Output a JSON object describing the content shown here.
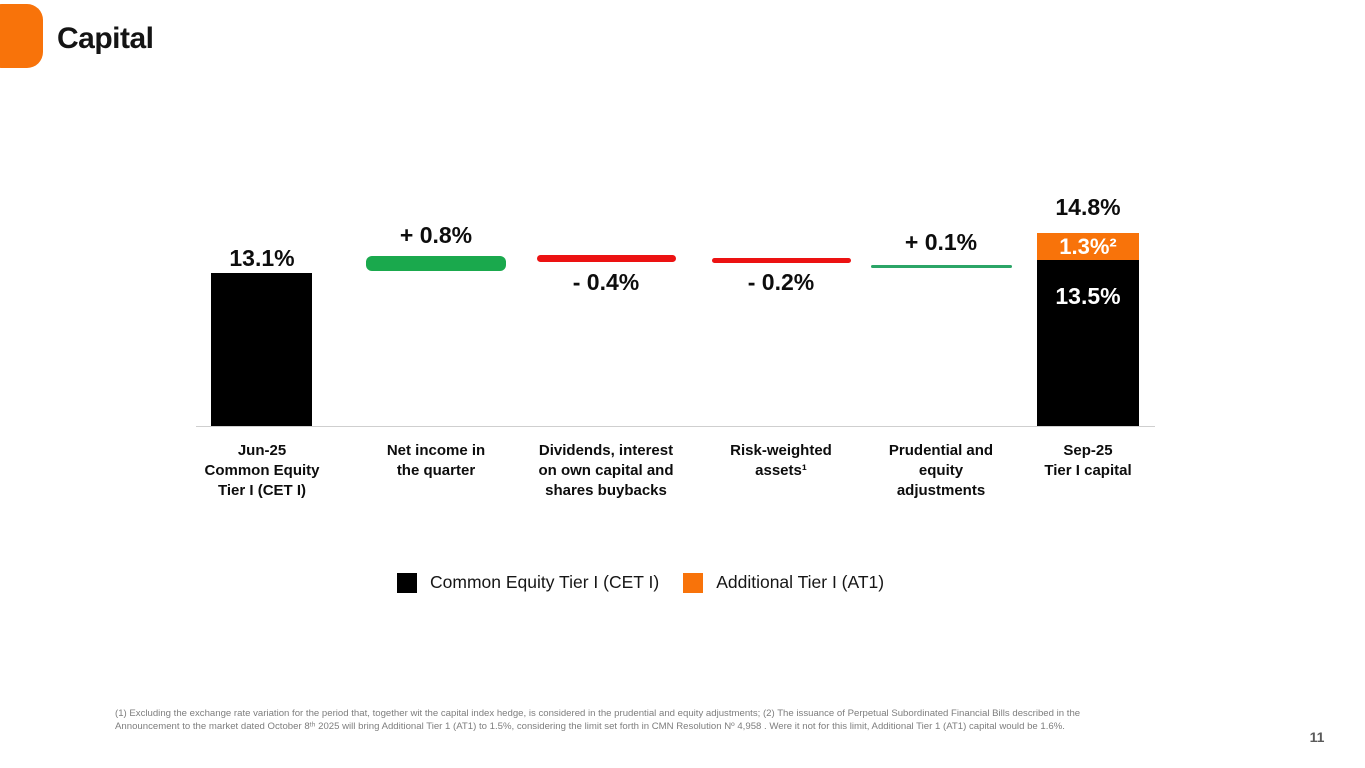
{
  "slide": {
    "title": "Capital",
    "page_number": "11"
  },
  "chart_data": {
    "type": "bar",
    "subtype": "waterfall",
    "unit": "%",
    "legend_position": "bottom",
    "grid": false,
    "columns": [
      {
        "category": "Jun-25\nCommon Equity\nTier I (CET I)",
        "value": 13.1,
        "value_label": "13.1%",
        "role": "start-total",
        "color": "#000000"
      },
      {
        "category": "Net income in\nthe quarter",
        "value": 0.8,
        "value_label": "+ 0.8%",
        "role": "increase",
        "color": "#1AA94D"
      },
      {
        "category": "Dividends, interest\non own capital and\nshares buybacks",
        "value": -0.4,
        "value_label": "- 0.4%",
        "role": "decrease",
        "color": "#EC1212"
      },
      {
        "category": "Risk-weighted\nassets¹",
        "value": -0.2,
        "value_label": "- 0.2%",
        "role": "decrease",
        "color": "#EC1212"
      },
      {
        "category": "Prudential and\nequity\nadjustments",
        "value": 0.1,
        "value_label": "+ 0.1%",
        "role": "increase",
        "color": "#2BA567"
      },
      {
        "category": "Sep-25\nTier I capital",
        "value": 14.8,
        "value_label": "14.8%",
        "role": "end-total",
        "segments": [
          {
            "name": "Common Equity Tier I (CET I)",
            "value": 13.5,
            "value_label": "13.5%",
            "color": "#000000"
          },
          {
            "name": "Additional Tier I (AT1)",
            "value": 1.3,
            "value_label": "1.3%²",
            "color": "#F8730A"
          }
        ]
      }
    ]
  },
  "legend": {
    "items": [
      {
        "label": "Common Equity Tier I (CET I)",
        "color": "#000000"
      },
      {
        "label": "Additional Tier I (AT1)",
        "color": "#F8730A"
      }
    ]
  },
  "footnotes": {
    "line1": "(1) Excluding the exchange rate variation for the period that, together wit the capital index hedge, is considered in the prudential and equity adjustments; (2) The issuance of Perpetual Subordinated Financial Bills described in the",
    "line2": "Announcement to the market dated October 8ᵗʰ 2025 will bring Additional Tier 1 (AT1) to 1.5%, considering the limit set forth in CMN Resolution Nº 4,958 . Were it not for this limit, Additional Tier 1 (AT1) capital would be 1.6%."
  },
  "colors": {
    "brand_orange": "#F8730A",
    "positive_green": "#1AA94D",
    "thin_green": "#2BA567",
    "negative_red": "#EC1212",
    "cet1_black": "#000000",
    "axis_gray": "#CFCFCF",
    "footnote_gray": "#7E7E7E"
  }
}
